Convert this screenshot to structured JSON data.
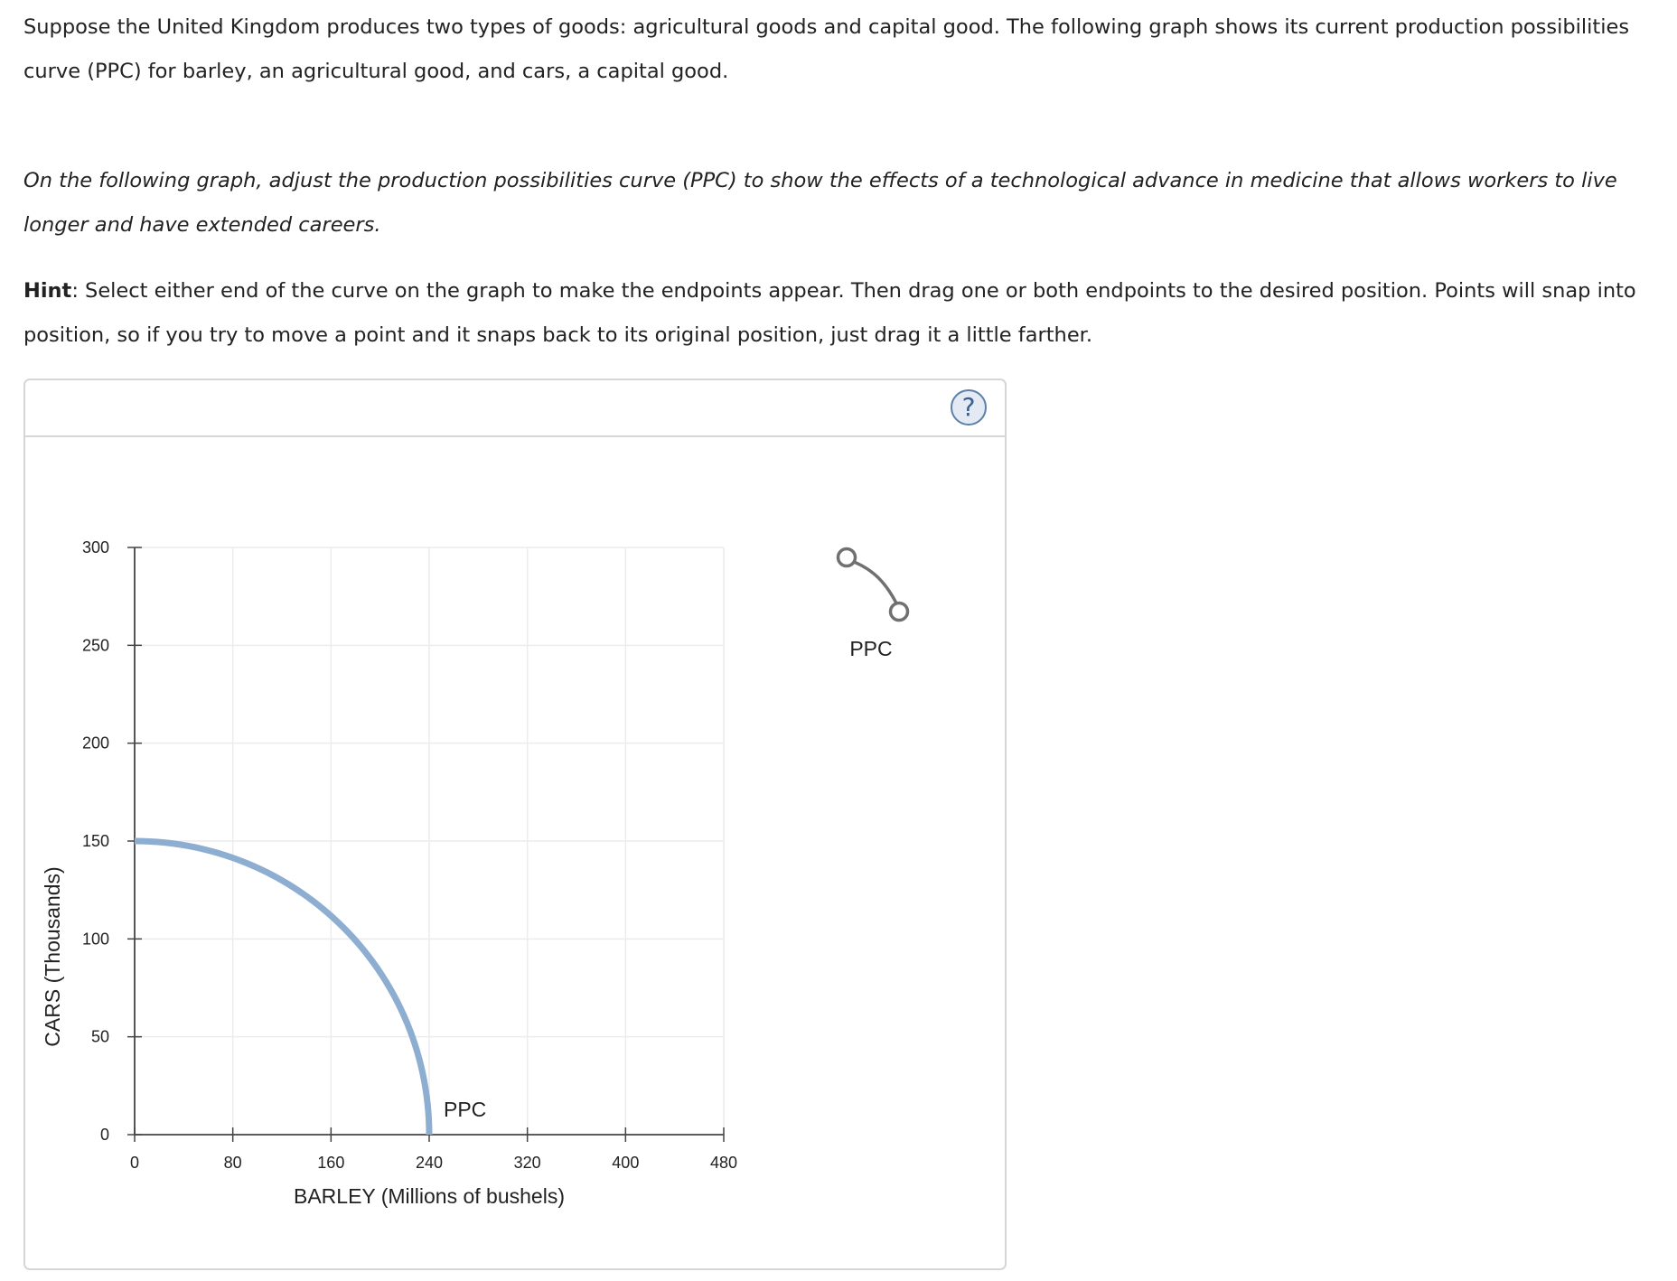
{
  "question": {
    "intro": "Suppose the United Kingdom produces two types of goods: agricultural goods and capital good. The following graph shows its current production possibilities curve (PPC) for barley, an agricultural good, and cars, a capital good.",
    "task": "On the following graph, adjust the production possibilities curve (PPC) to show the effects of a technological advance in medicine that allows workers to live longer and have extended careers.",
    "hint_label": "Hint",
    "hint_text": ": Select either end of the curve on the graph to make the endpoints appear. Then drag one or both endpoints to the desired position. Points will snap into position, so if you try to move a point and it snaps back to its original position, just drag it a little farther."
  },
  "panel": {
    "help_label": "?",
    "palette_label": "PPC"
  },
  "colors": {
    "curve": "#8eaed1",
    "axis": "#444444",
    "grid": "#ececec",
    "palette_curve": "#707070"
  },
  "chart_data": {
    "type": "line",
    "xlabel": "BARLEY (Millions of bushels)",
    "ylabel": "CARS (Thousands)",
    "xlim": [
      0,
      480
    ],
    "ylim": [
      0,
      300
    ],
    "x_ticks": [
      0,
      80,
      160,
      240,
      320,
      400,
      480
    ],
    "y_ticks": [
      0,
      50,
      100,
      150,
      200,
      250,
      300
    ],
    "grid": true,
    "series": [
      {
        "name": "PPC",
        "shape": "concave quarter ellipse",
        "y_intercept": 150,
        "x_intercept": 240,
        "points": [
          [
            0,
            150
          ],
          [
            80,
            141.4
          ],
          [
            120,
            129.9
          ],
          [
            160,
            111.8
          ],
          [
            200,
            82.9
          ],
          [
            240,
            0
          ]
        ]
      }
    ]
  }
}
